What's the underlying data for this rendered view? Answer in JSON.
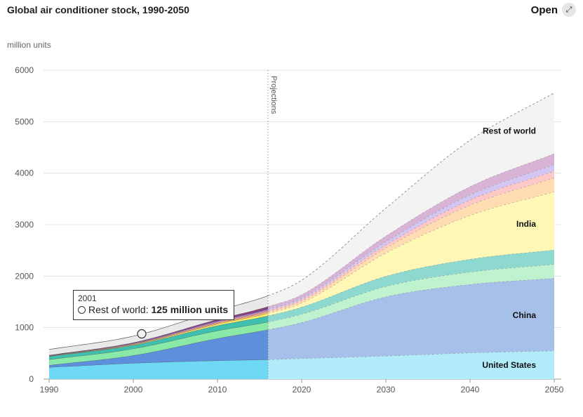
{
  "header": {
    "title": "Global air conditioner stock, 1990-2050",
    "open_label": "Open",
    "open_icon": "expand-icon"
  },
  "tooltip": {
    "year": "2001",
    "series": "Rest of world",
    "separator": ": ",
    "value": "125 million units"
  },
  "chart_data": {
    "type": "area",
    "stacked": true,
    "ylabel": "million units",
    "ylim": [
      0,
      6000
    ],
    "xlim": [
      1990,
      2050
    ],
    "x_ticks": [
      1990,
      2000,
      2010,
      2020,
      2030,
      2040,
      2050
    ],
    "y_ticks": [
      0,
      1000,
      2000,
      3000,
      4000,
      5000,
      6000
    ],
    "grid": true,
    "annotation": "Projections",
    "projection_start": 2016,
    "x": [
      1990,
      2000,
      2010,
      2016,
      2020,
      2030,
      2040,
      2050
    ],
    "series": [
      {
        "name": "United States",
        "color": "#6fd8f5",
        "projection_color": "#b2ecfb",
        "values": [
          230,
          310,
          360,
          380,
          400,
          450,
          510,
          550
        ]
      },
      {
        "name": "China",
        "color": "#5d8fdc",
        "projection_color": "#a7c0ea",
        "values": [
          40,
          150,
          430,
          580,
          700,
          1150,
          1330,
          1410
        ]
      },
      {
        "name": "",
        "color": "#8be9a8",
        "projection_color": "#bff3cf",
        "values": [
          110,
          130,
          150,
          150,
          160,
          200,
          240,
          270
        ]
      },
      {
        "name": "",
        "color": "#3fbfae",
        "projection_color": "#8dd9cf",
        "values": [
          60,
          70,
          100,
          120,
          140,
          200,
          250,
          280
        ]
      },
      {
        "name": "India",
        "color": "#fff06a",
        "projection_color": "#fff7b5",
        "values": [
          5,
          10,
          30,
          50,
          80,
          450,
          850,
          1130
        ]
      },
      {
        "name": "",
        "color": "#ffbf7a",
        "projection_color": "#ffdcb2",
        "values": [
          5,
          10,
          20,
          30,
          40,
          100,
          200,
          270
        ]
      },
      {
        "name": "",
        "color": "#ff9f9f",
        "projection_color": "#ffc8c8",
        "values": [
          5,
          10,
          20,
          25,
          30,
          60,
          100,
          130
        ]
      },
      {
        "name": "",
        "color": "#a487e3",
        "projection_color": "#d4c6f3",
        "values": [
          5,
          10,
          20,
          25,
          30,
          60,
          100,
          130
        ]
      },
      {
        "name": "",
        "color": "#8a3f7e",
        "projection_color": "#d9b3d6",
        "values": [
          5,
          10,
          30,
          50,
          60,
          110,
          160,
          210
        ]
      },
      {
        "name": "Rest of world",
        "color": "#e9e9e9",
        "projection_color": "#f3f3f3",
        "values": [
          110,
          125,
          170,
          210,
          280,
          540,
          900,
          1180
        ]
      }
    ],
    "series_labels_shown": [
      "Rest of world",
      "India",
      "China",
      "United States"
    ]
  }
}
